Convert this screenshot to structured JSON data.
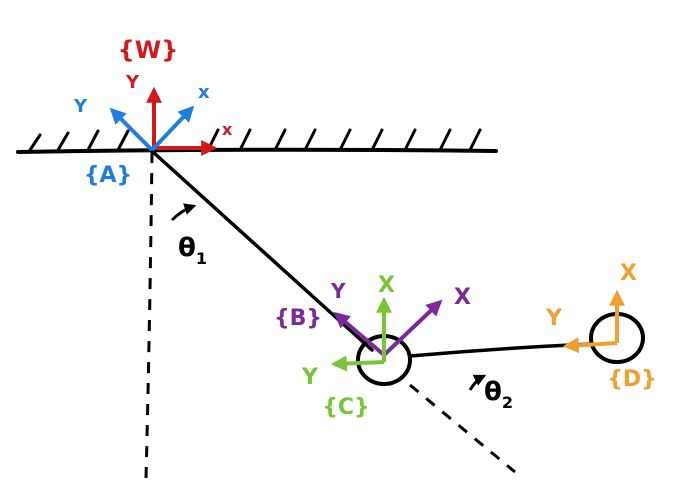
{
  "frames": {
    "W": {
      "name": "{W}",
      "x_label": "x",
      "y_label": "Y"
    },
    "A": {
      "name": "{A}",
      "x_label": "x",
      "y_label": "Y"
    },
    "B": {
      "name": "{B}",
      "x_label": "X",
      "y_label": "Y"
    },
    "C": {
      "name": "{C}",
      "x_label": "X",
      "y_label": "Y"
    },
    "D": {
      "name": "{D}",
      "x_label": "X",
      "y_label": "Y"
    }
  },
  "angles": {
    "theta1": "θ",
    "theta1_sub": "1",
    "theta2": "θ",
    "theta2_sub": "2"
  },
  "colors": {
    "ink": "#000000",
    "W": "#d31a1a",
    "A": "#1f7de0",
    "B": "#7a2a9a",
    "C": "#7bc43a",
    "D": "#f0a030"
  }
}
